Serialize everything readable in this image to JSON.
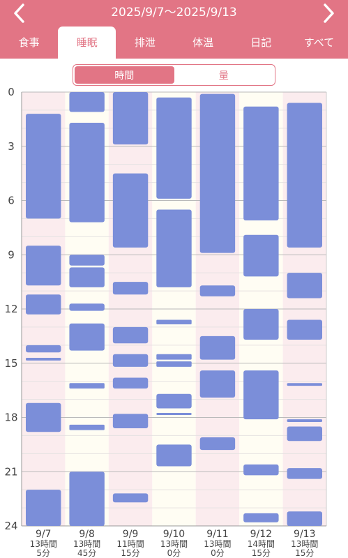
{
  "header": {
    "date_range": "2025/9/7〜2025/9/13",
    "prev_icon": "chevron-left-icon",
    "next_icon": "chevron-right-icon"
  },
  "tabs": [
    {
      "label": "食事",
      "active": false
    },
    {
      "label": "睡眠",
      "active": true
    },
    {
      "label": "排泄",
      "active": false
    },
    {
      "label": "体温",
      "active": false
    },
    {
      "label": "日記",
      "active": false
    },
    {
      "label": "すべて",
      "active": false
    }
  ],
  "segment": {
    "options": [
      "時間",
      "量"
    ],
    "selected": 0
  },
  "colors": {
    "accent": "#e27585",
    "bar": "#7b8ed9",
    "pink_col": "#fbecee",
    "cream_col": "#fffdf3",
    "sunday": "#d64a5c",
    "saturday": "#4a86c8"
  },
  "chart_data": {
    "type": "bar",
    "y_axis": {
      "min": 0,
      "max": 24,
      "ticks": [
        0,
        3,
        6,
        9,
        12,
        15,
        18,
        21,
        24
      ]
    },
    "days": [
      {
        "date": "9/7",
        "total_hours": "13時間",
        "total_minutes": "5分",
        "highlight": "sunday",
        "segments": [
          [
            1.2,
            7.0
          ],
          [
            8.5,
            10.7
          ],
          [
            11.2,
            12.3
          ],
          [
            14.0,
            14.4
          ],
          [
            14.7,
            14.85
          ],
          [
            17.2,
            18.8
          ],
          [
            22.0,
            24.0
          ]
        ]
      },
      {
        "date": "9/8",
        "total_hours": "13時間",
        "total_minutes": "45分",
        "highlight": null,
        "segments": [
          [
            0,
            1.1
          ],
          [
            1.7,
            7.2
          ],
          [
            9.0,
            9.6
          ],
          [
            9.7,
            10.8
          ],
          [
            11.7,
            12.1
          ],
          [
            12.8,
            14.3
          ],
          [
            16.1,
            16.4
          ],
          [
            18.4,
            18.7
          ],
          [
            21.0,
            24.0
          ]
        ]
      },
      {
        "date": "9/9",
        "total_hours": "11時間",
        "total_minutes": "15分",
        "highlight": null,
        "segments": [
          [
            0,
            2.9
          ],
          [
            4.5,
            8.6
          ],
          [
            10.5,
            11.2
          ],
          [
            13.0,
            13.9
          ],
          [
            14.5,
            15.2
          ],
          [
            15.8,
            16.4
          ],
          [
            17.8,
            18.6
          ],
          [
            22.2,
            22.7
          ]
        ]
      },
      {
        "date": "9/10",
        "total_hours": "13時間",
        "total_minutes": "0分",
        "highlight": null,
        "segments": [
          [
            0.3,
            5.9
          ],
          [
            6.5,
            10.8
          ],
          [
            12.6,
            12.85
          ],
          [
            14.5,
            14.8
          ],
          [
            14.9,
            15.2
          ],
          [
            16.7,
            17.5
          ],
          [
            17.75,
            17.85
          ],
          [
            19.5,
            20.7
          ]
        ]
      },
      {
        "date": "9/11",
        "total_hours": "13時間",
        "total_minutes": "0分",
        "highlight": null,
        "segments": [
          [
            0.1,
            8.9
          ],
          [
            10.7,
            11.3
          ],
          [
            13.5,
            14.8
          ],
          [
            15.4,
            16.9
          ],
          [
            19.1,
            19.8
          ]
        ]
      },
      {
        "date": "9/12",
        "total_hours": "14時間",
        "total_minutes": "15分",
        "highlight": null,
        "segments": [
          [
            0.8,
            7.1
          ],
          [
            7.9,
            10.2
          ],
          [
            12.0,
            13.7
          ],
          [
            15.4,
            18.1
          ],
          [
            20.6,
            21.2
          ],
          [
            23.3,
            23.8
          ]
        ]
      },
      {
        "date": "9/13",
        "total_hours": "13時間",
        "total_minutes": "15分",
        "highlight": "saturday",
        "segments": [
          [
            0.6,
            8.6
          ],
          [
            10.0,
            11.4
          ],
          [
            12.6,
            13.7
          ],
          [
            16.1,
            16.25
          ],
          [
            18.1,
            18.25
          ],
          [
            18.5,
            19.3
          ],
          [
            20.8,
            21.4
          ],
          [
            23.2,
            24.0
          ]
        ]
      }
    ]
  }
}
